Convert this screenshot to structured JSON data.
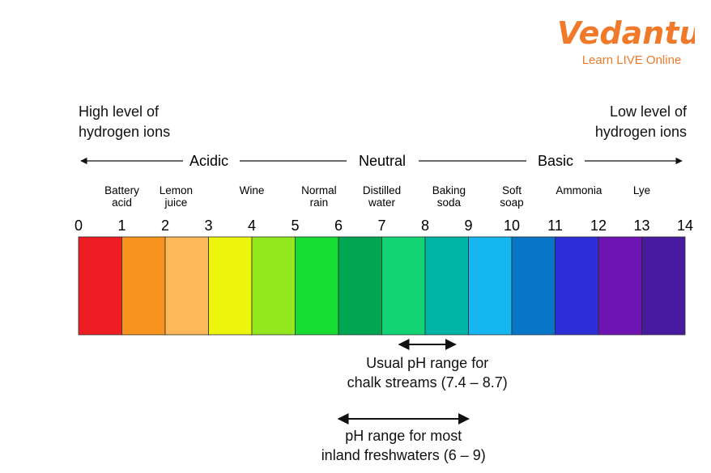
{
  "logo": {
    "brand": "Vedantu",
    "tagline": "Learn LIVE Online",
    "color": "#f07a2a"
  },
  "header": {
    "left_note": [
      "High level of",
      "hydrogen ions"
    ],
    "right_note": [
      "Low level of",
      "hydrogen ions"
    ]
  },
  "scale": {
    "regions": [
      "Acidic",
      "Neutral",
      "Basic"
    ],
    "ticks": [
      "0",
      "1",
      "2",
      "3",
      "4",
      "5",
      "6",
      "7",
      "8",
      "9",
      "10",
      "11",
      "12",
      "13",
      "14"
    ],
    "segments": [
      {
        "value": 0,
        "color": "#ee1c23"
      },
      {
        "value": 1,
        "color": "#f7941d"
      },
      {
        "value": 2,
        "color": "#fdb85a"
      },
      {
        "value": 3,
        "color": "#eef50c"
      },
      {
        "value": 4,
        "color": "#93e81e"
      },
      {
        "value": 5,
        "color": "#17dc31"
      },
      {
        "value": 6,
        "color": "#00a651"
      },
      {
        "value": 7,
        "color": "#12d474"
      },
      {
        "value": 8,
        "color": "#00b5a5"
      },
      {
        "value": 9,
        "color": "#16b6f0"
      },
      {
        "value": 10,
        "color": "#0876c8"
      },
      {
        "value": 11,
        "color": "#2e2ed8"
      },
      {
        "value": 12,
        "color": "#6e14b2"
      },
      {
        "value": 13,
        "color": "#481aa0"
      }
    ]
  },
  "substances": [
    {
      "lines": [
        "Battery",
        "acid"
      ],
      "ph": 1
    },
    {
      "lines": [
        "Lemon",
        "juice"
      ],
      "ph": 2.25
    },
    {
      "lines": [
        "Wine"
      ],
      "ph": 4
    },
    {
      "lines": [
        "Normal",
        "rain"
      ],
      "ph": 5.55
    },
    {
      "lines": [
        "Distilled",
        "water"
      ],
      "ph": 7
    },
    {
      "lines": [
        "Baking",
        "soda"
      ],
      "ph": 8.55
    },
    {
      "lines": [
        "Soft",
        "soap"
      ],
      "ph": 10
    },
    {
      "lines": [
        "Ammonia"
      ],
      "ph": 11.55
    },
    {
      "lines": [
        "Lye"
      ],
      "ph": 13
    }
  ],
  "ranges": [
    {
      "from": 7.4,
      "to": 8.7,
      "lines": [
        "Usual pH range for",
        "chalk streams (7.4 – 8.7)"
      ]
    },
    {
      "from": 6,
      "to": 9,
      "lines": [
        "pH range for most",
        "inland freshwaters (6 – 9)"
      ]
    }
  ]
}
